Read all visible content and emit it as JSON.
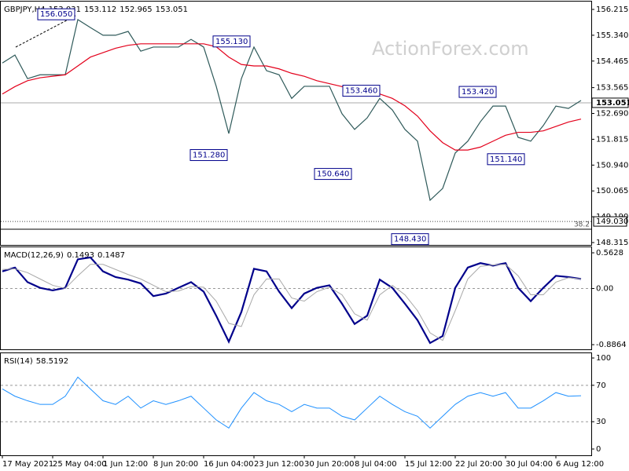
{
  "watermark": "ActionForex.com",
  "chart_data": [
    {
      "type": "line",
      "title": "GBPJPY,H4",
      "ohlc": [
        153.031,
        153.112,
        152.965,
        153.051
      ],
      "ylim": [
        148.235,
        156.481
      ],
      "yticks": [
        156.215,
        {
          "value": 155.34,
          "label": "155.340"
        },
        {
          "value": 154.465,
          "label": "154.465"
        },
        153.565,
        {
          "value": 152.69,
          "label": "152.690"
        },
        151.815,
        {
          "value": 150.94,
          "label": "150.940"
        },
        150.065,
        {
          "value": 149.19,
          "label": "149.190"
        },
        148.315
      ],
      "series": [
        {
          "name": "GBPJPY",
          "color": "#2f5a5a",
          "values": [
            154.4,
            154.67,
            153.87,
            154.0,
            154.0,
            154.0,
            155.87,
            155.6,
            155.34,
            155.34,
            155.47,
            154.8,
            154.94,
            154.94,
            154.94,
            155.2,
            154.94,
            153.61,
            152.01,
            153.87,
            154.94,
            154.14,
            154.0,
            153.2,
            153.61,
            153.61,
            153.61,
            152.68,
            152.15,
            152.54,
            153.2,
            152.81,
            152.15,
            151.75,
            149.75,
            150.15,
            151.35,
            151.75,
            152.41,
            152.94,
            152.94,
            151.88,
            151.75,
            152.28,
            152.94,
            152.86,
            153.13
          ]
        },
        {
          "name": "MA",
          "color": "#e3001b",
          "values": [
            153.35,
            153.6,
            153.8,
            153.9,
            153.95,
            154.0,
            154.3,
            154.6,
            154.75,
            154.9,
            155.0,
            155.05,
            155.05,
            155.05,
            155.05,
            155.05,
            155.05,
            154.95,
            154.6,
            154.35,
            154.3,
            154.3,
            154.2,
            154.05,
            153.95,
            153.8,
            153.7,
            153.6,
            153.5,
            153.4,
            153.35,
            153.2,
            152.95,
            152.6,
            152.1,
            151.7,
            151.45,
            151.45,
            151.55,
            151.75,
            151.95,
            152.05,
            152.05,
            152.1,
            152.25,
            152.4,
            152.5
          ]
        }
      ],
      "annotations": [
        {
          "value": 156.05,
          "label": "156.050"
        },
        {
          "value": 155.13,
          "label": "155.130"
        },
        {
          "value": 153.46,
          "label": "153.460"
        },
        {
          "value": 153.42,
          "label": "153.420"
        },
        {
          "value": 151.28,
          "label": "151.280"
        },
        {
          "value": 150.64,
          "label": "150.640"
        },
        {
          "value": 148.43,
          "label": "148.430"
        },
        {
          "value": 151.14,
          "label": "151.140"
        }
      ],
      "fib": {
        "ratio": 38.2,
        "value": 149.03,
        "label": "149.030"
      }
    },
    {
      "type": "line",
      "title": "MACD(12,26,9)",
      "last": [
        0.1493,
        0.1487
      ],
      "ylim": [
        -0.96,
        0.65
      ],
      "yticks": [
        0.5628,
        {
          "value": 0,
          "label": "0.00"
        },
        -0.8864
      ],
      "series": [
        {
          "name": "MACD",
          "color": "#00008b",
          "width": 2.2,
          "values": [
            0.27,
            0.33,
            0.1,
            0.01,
            -0.03,
            0.01,
            0.46,
            0.49,
            0.27,
            0.18,
            0.14,
            0.08,
            -0.12,
            -0.08,
            0.01,
            0.1,
            -0.05,
            -0.43,
            -0.84,
            -0.37,
            0.31,
            0.27,
            -0.05,
            -0.31,
            -0.08,
            0.01,
            0.05,
            -0.24,
            -0.56,
            -0.43,
            0.14,
            0.01,
            -0.24,
            -0.5,
            -0.86,
            -0.75,
            0.01,
            0.33,
            0.4,
            0.36,
            0.4,
            0.01,
            -0.2,
            0.01,
            0.2,
            0.18,
            0.15
          ]
        },
        {
          "name": "Signal",
          "color": "#a8a8a8",
          "width": 1,
          "values": [
            0.3,
            0.31,
            0.25,
            0.15,
            0.05,
            0.0,
            0.2,
            0.38,
            0.38,
            0.3,
            0.22,
            0.15,
            0.05,
            -0.05,
            -0.04,
            0.03,
            0.02,
            -0.2,
            -0.55,
            -0.6,
            -0.1,
            0.15,
            0.15,
            -0.15,
            -0.2,
            -0.05,
            0.02,
            -0.1,
            -0.4,
            -0.5,
            -0.1,
            0.05,
            -0.1,
            -0.35,
            -0.7,
            -0.82,
            -0.35,
            0.15,
            0.35,
            0.37,
            0.38,
            0.2,
            -0.1,
            -0.1,
            0.1,
            0.17,
            0.15
          ]
        }
      ],
      "levels": [
        0
      ]
    },
    {
      "type": "line",
      "title": "RSI(14)",
      "last": [
        58.5192
      ],
      "ylim": [
        -6.9,
        105.2
      ],
      "yticks": [
        100,
        70,
        30,
        0
      ],
      "levels": [
        70,
        30
      ],
      "categories": [
        "17 May 2021",
        null,
        null,
        null,
        "25 May 04:00",
        null,
        null,
        null,
        "1 Jun 12:00",
        null,
        null,
        null,
        "8 Jun 20:00",
        null,
        null,
        null,
        "16 Jun 04:00",
        null,
        null,
        null,
        "23 Jun 12:00",
        null,
        null,
        null,
        "30 Jun 20:00",
        null,
        null,
        null,
        "8 Jul 04:00",
        null,
        null,
        null,
        "15 Jul 12:00",
        null,
        null,
        null,
        "22 Jul 20:00",
        null,
        null,
        null,
        "30 Jul 04:00",
        null,
        null,
        null,
        "6 Aug 12:00",
        null,
        null
      ],
      "series": [
        {
          "name": "RSI",
          "color": "#1e90ff",
          "width": 1,
          "values": [
            66,
            58,
            53,
            49,
            49,
            58,
            79,
            66,
            53,
            49,
            58,
            45,
            53,
            49,
            53,
            58,
            45,
            32,
            23,
            45,
            62,
            53,
            49,
            41,
            49,
            45,
            45,
            36,
            32,
            45,
            58,
            49,
            41,
            36,
            23,
            36,
            49,
            58,
            62,
            58,
            62,
            45,
            45,
            53,
            62,
            58,
            58.5
          ]
        }
      ]
    }
  ]
}
